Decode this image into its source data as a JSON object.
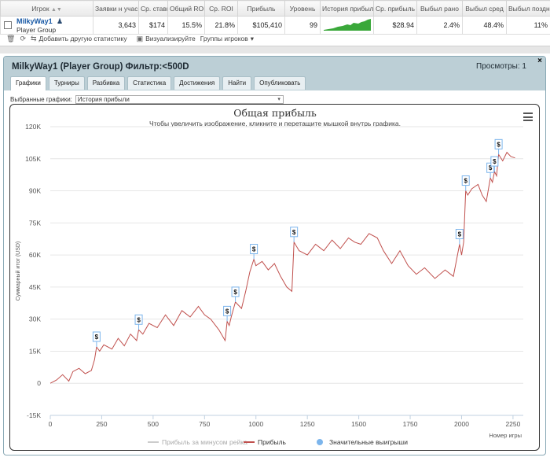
{
  "table": {
    "headers": [
      "Игрок",
      "Заявки н учас",
      "Ср. ставк",
      "Общий ROI",
      "Ср. ROI",
      "Прибыль",
      "Уровень",
      "История прибыл",
      "Ср. прибыль",
      "Выбыл рано",
      "Выбыл сред",
      "Выбыл поздн"
    ],
    "row": {
      "player_name": "MilkyWay1",
      "player_group": "Player Group",
      "entries": "3,643",
      "avg_stake": "$174",
      "total_roi": "15.5%",
      "avg_roi": "21.8%",
      "profit": "$105,410",
      "level": "99",
      "avg_profit": "$28.94",
      "out_early": "2.4%",
      "out_mid": "48.4%",
      "out_late": "11%"
    }
  },
  "toolbar": {
    "add_stats": "Добавить другую статистику",
    "visualize": "Визуализируйте",
    "player_groups": "Группы игроков"
  },
  "panel": {
    "title": "MilkyWay1 (Player Group) Фильтр:<500D",
    "views": "Просмотры: 1",
    "close": "×",
    "tabs": [
      "Графики",
      "Турниры",
      "Разбивка",
      "Статистика",
      "Достижения",
      "Найти",
      "Опубликовать"
    ],
    "active_tab": 0,
    "select_label": "Выбранные графики:",
    "select_value": "История прибыли"
  },
  "chart_data": {
    "type": "line",
    "title": "Общая прибыль",
    "subtitle": "Чтобы увеличить изображение, кликните и перетащите мышкой внутрь графика.",
    "ylabel": "Суммарный итог (USD)",
    "xlabel": "Номер игры",
    "xlim": [
      0,
      2300
    ],
    "ylim": [
      -15000,
      120000
    ],
    "x_ticks": [
      "0",
      "250",
      "500",
      "750",
      "1000",
      "1250",
      "1500",
      "1750",
      "2000",
      "2250"
    ],
    "y_ticks": [
      "120K",
      "105K",
      "90K",
      "75K",
      "60K",
      "45K",
      "30K",
      "15K",
      "0",
      "-15K"
    ],
    "legend": [
      "Прибыль за минусом рейка",
      "Прибыль",
      "Значительные выигрыши"
    ],
    "legend_position": "bottom",
    "series": [
      {
        "name": "Прибыль",
        "color": "#c0504d",
        "x": [
          0,
          30,
          60,
          90,
          110,
          140,
          170,
          200,
          215,
          225,
          240,
          260,
          300,
          330,
          360,
          390,
          420,
          430,
          450,
          480,
          520,
          560,
          600,
          640,
          680,
          720,
          750,
          780,
          820,
          850,
          860,
          870,
          880,
          900,
          930,
          950,
          970,
          990,
          1000,
          1030,
          1060,
          1090,
          1120,
          1150,
          1175,
          1185,
          1210,
          1250,
          1290,
          1330,
          1370,
          1410,
          1450,
          1480,
          1510,
          1550,
          1590,
          1620,
          1660,
          1700,
          1740,
          1780,
          1820,
          1870,
          1920,
          1960,
          1990,
          2000,
          2010,
          2020,
          2030,
          2050,
          2080,
          2100,
          2120,
          2140,
          2150,
          2160,
          2170,
          2180,
          2200,
          2220,
          2240,
          2260
        ],
        "values": [
          0,
          1500,
          4000,
          1000,
          5500,
          7000,
          4500,
          6000,
          11000,
          17000,
          15000,
          18000,
          16000,
          21000,
          17500,
          23000,
          20000,
          25000,
          23000,
          28000,
          26000,
          32000,
          27000,
          34000,
          31000,
          36000,
          32000,
          30000,
          25000,
          20000,
          29000,
          27000,
          31000,
          38000,
          35000,
          43000,
          52000,
          58000,
          55000,
          57000,
          53000,
          56000,
          50000,
          45000,
          43000,
          66000,
          62000,
          60000,
          65000,
          62000,
          67000,
          63000,
          68000,
          66000,
          65000,
          70000,
          68000,
          62000,
          56000,
          62000,
          55000,
          51000,
          54000,
          49000,
          53000,
          50000,
          65000,
          60000,
          66000,
          90000,
          88000,
          91000,
          93000,
          88000,
          85000,
          96000,
          94000,
          99000,
          97000,
          107000,
          104000,
          108000,
          106000,
          105410
        ]
      }
    ],
    "big_wins": [
      {
        "x": 225,
        "y": 17000
      },
      {
        "x": 430,
        "y": 25000
      },
      {
        "x": 860,
        "y": 29000
      },
      {
        "x": 900,
        "y": 38000
      },
      {
        "x": 990,
        "y": 58000
      },
      {
        "x": 1185,
        "y": 66000
      },
      {
        "x": 1990,
        "y": 65000
      },
      {
        "x": 2020,
        "y": 90000
      },
      {
        "x": 2140,
        "y": 96000
      },
      {
        "x": 2160,
        "y": 99000
      },
      {
        "x": 2180,
        "y": 107000
      }
    ],
    "grid": true
  },
  "colors": {
    "profit_line": "#c0504d",
    "rake_line": "#cccccc",
    "big_win_marker": "#7cb5ec",
    "sparkline": "#3aa83a"
  },
  "icons": {
    "sort": "sort-arrow-icon",
    "player": "player-avatar-icon",
    "delete": "trash-icon",
    "refresh": "refresh-icon",
    "stats": "stats-icon",
    "visualize": "image-icon",
    "menu": "hamburger-menu-icon"
  }
}
